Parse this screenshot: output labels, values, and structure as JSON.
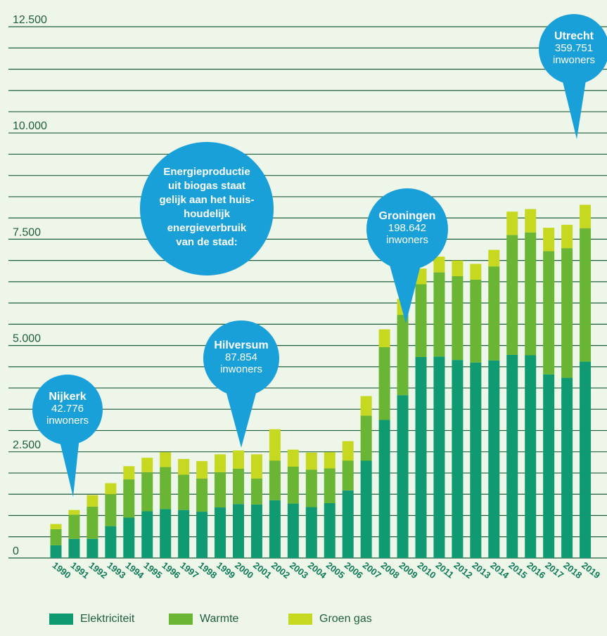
{
  "chart_data": {
    "type": "bar",
    "stacked": true,
    "categories": [
      "1990",
      "1991",
      "1992",
      "1993",
      "1994",
      "1995",
      "1996",
      "1997",
      "1998",
      "1999",
      "2000",
      "2001",
      "2002",
      "2003",
      "2004",
      "2005",
      "2006",
      "2007",
      "2008",
      "2009",
      "2010",
      "2011",
      "2012",
      "2013",
      "2014",
      "2015",
      "2016",
      "2017",
      "2018",
      "2019"
    ],
    "series": [
      {
        "name": "Elektriciteit",
        "color": "#0f9a72",
        "values": [
          300,
          450,
          450,
          750,
          950,
          1100,
          1150,
          1130,
          1090,
          1190,
          1270,
          1260,
          1360,
          1280,
          1200,
          1290,
          1590,
          2290,
          3250,
          3830,
          4730,
          4740,
          4660,
          4600,
          4650,
          4780,
          4770,
          4320,
          4240,
          4620
        ]
      },
      {
        "name": "Warmte",
        "color": "#6ab533",
        "values": [
          380,
          570,
          760,
          750,
          900,
          920,
          990,
          830,
          780,
          830,
          830,
          610,
          930,
          870,
          880,
          820,
          700,
          1060,
          1710,
          1890,
          1710,
          1980,
          1970,
          1950,
          2210,
          2820,
          2890,
          2900,
          3050,
          3140
        ]
      },
      {
        "name": "Groen gas",
        "color": "#c7d820",
        "values": [
          120,
          110,
          270,
          260,
          310,
          340,
          350,
          370,
          410,
          420,
          430,
          570,
          740,
          400,
          400,
          380,
          460,
          460,
          420,
          380,
          370,
          370,
          370,
          370,
          390,
          550,
          550,
          550,
          550,
          550
        ]
      }
    ],
    "ylim": [
      0,
      12500
    ],
    "y_ticks": [
      "0",
      "2.500",
      "5.000",
      "7.500",
      "10.000",
      "12.500"
    ],
    "grid": true,
    "legend_position": "bottom-left"
  },
  "annotations": [
    {
      "city": "Nijkerk",
      "population": "42.776",
      "unit": "inwoners"
    },
    {
      "city": "Hilversum",
      "population": "87.854",
      "unit": "inwoners"
    },
    {
      "city": "Groningen",
      "population": "198.642",
      "unit": "inwoners"
    },
    {
      "city": "Utrecht",
      "population": "359.751",
      "unit": "inwoners"
    }
  ],
  "center_note": [
    "Energieproductie",
    "uit biogas staat",
    "gelijk aan het huis-",
    "houdelijk",
    "energieverbruik",
    "van de stad:"
  ],
  "colors": {
    "bubble": "#1aa0d8",
    "grid": "#1f5e3a",
    "text": "#1f5e3a"
  }
}
